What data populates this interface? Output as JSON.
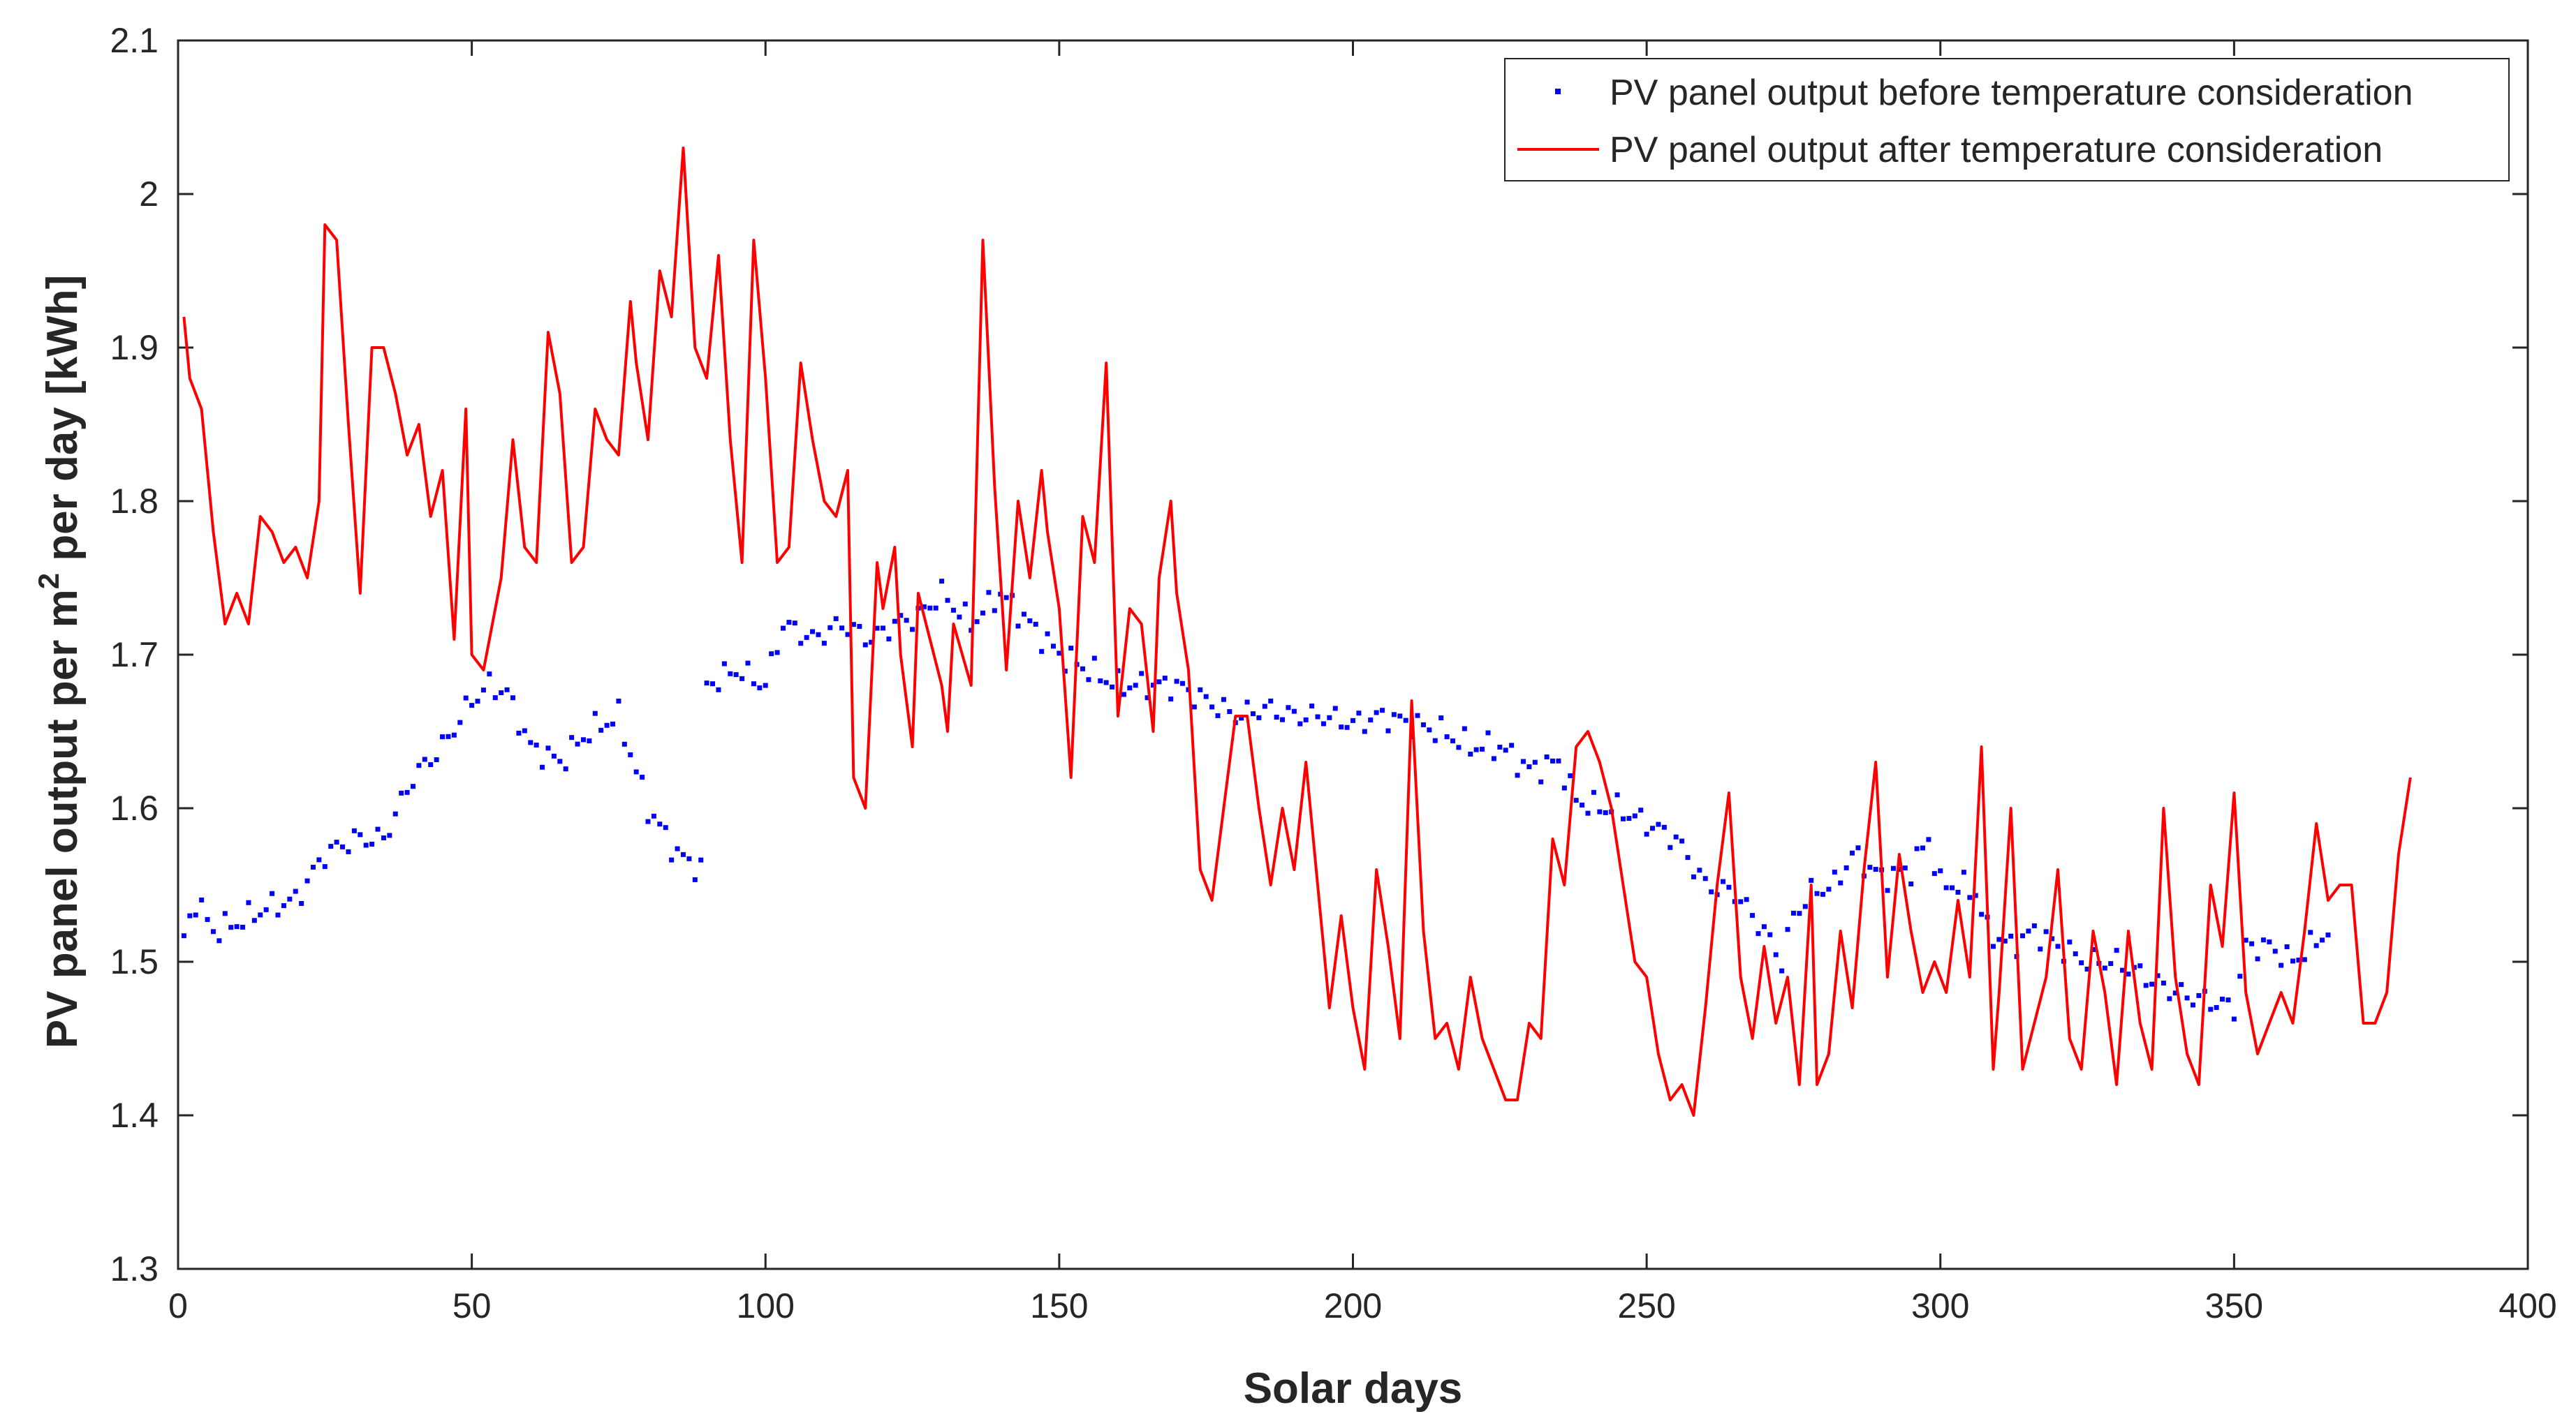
{
  "chart_data": {
    "type": "line",
    "title": "",
    "xlabel": "Solar days",
    "ylabel_parts": {
      "prefix": "PV panel output per m",
      "superscript": "2",
      "suffix": " per day [kWh]"
    },
    "xlim": [
      0,
      400
    ],
    "ylim": [
      1.3,
      2.1
    ],
    "xticks": [
      0,
      50,
      100,
      150,
      200,
      250,
      300,
      350,
      400
    ],
    "yticks": [
      1.3,
      1.4,
      1.5,
      1.6,
      1.7,
      1.8,
      1.9,
      2.0,
      2.1
    ],
    "xtick_labels": [
      "0",
      "50",
      "100",
      "150",
      "200",
      "250",
      "300",
      "350",
      "400"
    ],
    "ytick_labels": [
      "1.3",
      "1.4",
      "1.5",
      "1.6",
      "1.7",
      "1.8",
      "1.9",
      "2",
      "2.1"
    ],
    "grid": false,
    "legend_position": "top-right",
    "series": [
      {
        "name": "PV panel output before temperature consideration",
        "style": "dots",
        "color": "#0000ff",
        "x_start": 1,
        "x_step": 1,
        "anchors": [
          [
            1,
            1.515
          ],
          [
            3,
            1.54
          ],
          [
            6,
            1.52
          ],
          [
            10,
            1.525
          ],
          [
            15,
            1.535
          ],
          [
            20,
            1.54
          ],
          [
            25,
            1.57
          ],
          [
            30,
            1.58
          ],
          [
            35,
            1.58
          ],
          [
            40,
            1.62
          ],
          [
            45,
            1.64
          ],
          [
            50,
            1.67
          ],
          [
            53,
            1.68
          ],
          [
            56,
            1.675
          ],
          [
            60,
            1.64
          ],
          [
            65,
            1.63
          ],
          [
            70,
            1.65
          ],
          [
            75,
            1.66
          ],
          [
            80,
            1.6
          ],
          [
            85,
            1.57
          ],
          [
            89,
            1.56
          ],
          [
            90,
            1.68
          ],
          [
            95,
            1.69
          ],
          [
            100,
            1.68
          ],
          [
            103,
            1.72
          ],
          [
            108,
            1.71
          ],
          [
            113,
            1.72
          ],
          [
            118,
            1.71
          ],
          [
            122,
            1.72
          ],
          [
            126,
            1.725
          ],
          [
            130,
            1.74
          ],
          [
            135,
            1.72
          ],
          [
            140,
            1.74
          ],
          [
            145,
            1.72
          ],
          [
            150,
            1.7
          ],
          [
            155,
            1.69
          ],
          [
            160,
            1.68
          ],
          [
            165,
            1.68
          ],
          [
            170,
            1.68
          ],
          [
            175,
            1.67
          ],
          [
            180,
            1.66
          ],
          [
            185,
            1.665
          ],
          [
            190,
            1.66
          ],
          [
            195,
            1.66
          ],
          [
            200,
            1.655
          ],
          [
            205,
            1.66
          ],
          [
            210,
            1.655
          ],
          [
            215,
            1.65
          ],
          [
            220,
            1.64
          ],
          [
            225,
            1.64
          ],
          [
            230,
            1.625
          ],
          [
            235,
            1.63
          ],
          [
            238,
            1.605
          ],
          [
            242,
            1.6
          ],
          [
            245,
            1.6
          ],
          [
            250,
            1.59
          ],
          [
            255,
            1.58
          ],
          [
            260,
            1.55
          ],
          [
            265,
            1.545
          ],
          [
            270,
            1.52
          ],
          [
            273,
            1.5
          ],
          [
            275,
            1.53
          ],
          [
            278,
            1.545
          ],
          [
            282,
            1.55
          ],
          [
            285,
            1.57
          ],
          [
            290,
            1.555
          ],
          [
            295,
            1.56
          ],
          [
            298,
            1.58
          ],
          [
            300,
            1.55
          ],
          [
            303,
            1.55
          ],
          [
            306,
            1.545
          ],
          [
            308,
            1.52
          ],
          [
            312,
            1.51
          ],
          [
            316,
            1.52
          ],
          [
            320,
            1.51
          ],
          [
            325,
            1.5
          ],
          [
            330,
            1.5
          ],
          [
            335,
            1.49
          ],
          [
            340,
            1.48
          ],
          [
            345,
            1.475
          ],
          [
            350,
            1.47
          ],
          [
            352,
            1.51
          ],
          [
            356,
            1.51
          ],
          [
            360,
            1.5
          ],
          [
            363,
            1.51
          ],
          [
            366,
            1.52
          ]
        ]
      },
      {
        "name": "PV panel output after temperature consideration",
        "style": "line",
        "color": "#ff0000",
        "points": [
          [
            1,
            1.92
          ],
          [
            2,
            1.88
          ],
          [
            4,
            1.86
          ],
          [
            6,
            1.78
          ],
          [
            8,
            1.72
          ],
          [
            10,
            1.74
          ],
          [
            12,
            1.72
          ],
          [
            14,
            1.79
          ],
          [
            16,
            1.78
          ],
          [
            18,
            1.76
          ],
          [
            20,
            1.77
          ],
          [
            22,
            1.75
          ],
          [
            24,
            1.8
          ],
          [
            25,
            1.98
          ],
          [
            27,
            1.97
          ],
          [
            29,
            1.85
          ],
          [
            31,
            1.74
          ],
          [
            33,
            1.9
          ],
          [
            35,
            1.9
          ],
          [
            37,
            1.87
          ],
          [
            39,
            1.83
          ],
          [
            41,
            1.85
          ],
          [
            43,
            1.79
          ],
          [
            45,
            1.82
          ],
          [
            47,
            1.71
          ],
          [
            49,
            1.86
          ],
          [
            50,
            1.7
          ],
          [
            52,
            1.69
          ],
          [
            55,
            1.75
          ],
          [
            57,
            1.84
          ],
          [
            59,
            1.77
          ],
          [
            61,
            1.76
          ],
          [
            63,
            1.91
          ],
          [
            65,
            1.87
          ],
          [
            67,
            1.76
          ],
          [
            69,
            1.77
          ],
          [
            71,
            1.86
          ],
          [
            73,
            1.84
          ],
          [
            75,
            1.83
          ],
          [
            77,
            1.93
          ],
          [
            78,
            1.89
          ],
          [
            80,
            1.84
          ],
          [
            82,
            1.95
          ],
          [
            84,
            1.92
          ],
          [
            86,
            2.03
          ],
          [
            88,
            1.9
          ],
          [
            90,
            1.88
          ],
          [
            92,
            1.96
          ],
          [
            94,
            1.84
          ],
          [
            96,
            1.76
          ],
          [
            98,
            1.97
          ],
          [
            100,
            1.88
          ],
          [
            102,
            1.76
          ],
          [
            104,
            1.77
          ],
          [
            106,
            1.89
          ],
          [
            108,
            1.84
          ],
          [
            110,
            1.8
          ],
          [
            112,
            1.79
          ],
          [
            114,
            1.82
          ],
          [
            115,
            1.62
          ],
          [
            117,
            1.6
          ],
          [
            119,
            1.76
          ],
          [
            120,
            1.73
          ],
          [
            122,
            1.77
          ],
          [
            123,
            1.7
          ],
          [
            125,
            1.64
          ],
          [
            126,
            1.74
          ],
          [
            128,
            1.71
          ],
          [
            130,
            1.68
          ],
          [
            131,
            1.65
          ],
          [
            132,
            1.72
          ],
          [
            135,
            1.68
          ],
          [
            137,
            1.97
          ],
          [
            139,
            1.81
          ],
          [
            141,
            1.69
          ],
          [
            143,
            1.8
          ],
          [
            145,
            1.75
          ],
          [
            147,
            1.82
          ],
          [
            148,
            1.78
          ],
          [
            150,
            1.73
          ],
          [
            152,
            1.62
          ],
          [
            154,
            1.79
          ],
          [
            156,
            1.76
          ],
          [
            158,
            1.89
          ],
          [
            160,
            1.66
          ],
          [
            162,
            1.73
          ],
          [
            164,
            1.72
          ],
          [
            166,
            1.65
          ],
          [
            167,
            1.75
          ],
          [
            169,
            1.8
          ],
          [
            170,
            1.74
          ],
          [
            172,
            1.69
          ],
          [
            174,
            1.56
          ],
          [
            176,
            1.54
          ],
          [
            178,
            1.6
          ],
          [
            180,
            1.66
          ],
          [
            182,
            1.66
          ],
          [
            184,
            1.6
          ],
          [
            186,
            1.55
          ],
          [
            188,
            1.6
          ],
          [
            190,
            1.56
          ],
          [
            192,
            1.63
          ],
          [
            194,
            1.55
          ],
          [
            196,
            1.47
          ],
          [
            198,
            1.53
          ],
          [
            200,
            1.47
          ],
          [
            202,
            1.43
          ],
          [
            204,
            1.56
          ],
          [
            206,
            1.51
          ],
          [
            208,
            1.45
          ],
          [
            210,
            1.67
          ],
          [
            212,
            1.52
          ],
          [
            214,
            1.45
          ],
          [
            216,
            1.46
          ],
          [
            218,
            1.43
          ],
          [
            220,
            1.49
          ],
          [
            222,
            1.45
          ],
          [
            224,
            1.43
          ],
          [
            226,
            1.41
          ],
          [
            228,
            1.41
          ],
          [
            230,
            1.46
          ],
          [
            232,
            1.45
          ],
          [
            234,
            1.58
          ],
          [
            236,
            1.55
          ],
          [
            238,
            1.64
          ],
          [
            240,
            1.65
          ],
          [
            242,
            1.63
          ],
          [
            244,
            1.6
          ],
          [
            246,
            1.55
          ],
          [
            248,
            1.5
          ],
          [
            250,
            1.49
          ],
          [
            252,
            1.44
          ],
          [
            254,
            1.41
          ],
          [
            256,
            1.42
          ],
          [
            258,
            1.4
          ],
          [
            260,
            1.47
          ],
          [
            262,
            1.55
          ],
          [
            264,
            1.61
          ],
          [
            266,
            1.49
          ],
          [
            268,
            1.45
          ],
          [
            270,
            1.51
          ],
          [
            272,
            1.46
          ],
          [
            274,
            1.49
          ],
          [
            276,
            1.42
          ],
          [
            278,
            1.55
          ],
          [
            279,
            1.42
          ],
          [
            281,
            1.44
          ],
          [
            283,
            1.52
          ],
          [
            285,
            1.47
          ],
          [
            287,
            1.56
          ],
          [
            289,
            1.63
          ],
          [
            291,
            1.49
          ],
          [
            293,
            1.57
          ],
          [
            295,
            1.52
          ],
          [
            297,
            1.48
          ],
          [
            299,
            1.5
          ],
          [
            301,
            1.48
          ],
          [
            303,
            1.54
          ],
          [
            305,
            1.49
          ],
          [
            307,
            1.64
          ],
          [
            309,
            1.43
          ],
          [
            310,
            1.48
          ],
          [
            312,
            1.6
          ],
          [
            314,
            1.43
          ],
          [
            316,
            1.46
          ],
          [
            318,
            1.49
          ],
          [
            320,
            1.56
          ],
          [
            322,
            1.45
          ],
          [
            324,
            1.43
          ],
          [
            326,
            1.52
          ],
          [
            328,
            1.48
          ],
          [
            330,
            1.42
          ],
          [
            332,
            1.52
          ],
          [
            334,
            1.46
          ],
          [
            336,
            1.43
          ],
          [
            338,
            1.6
          ],
          [
            340,
            1.49
          ],
          [
            342,
            1.44
          ],
          [
            344,
            1.42
          ],
          [
            346,
            1.55
          ],
          [
            348,
            1.51
          ],
          [
            350,
            1.61
          ],
          [
            352,
            1.48
          ],
          [
            354,
            1.44
          ],
          [
            356,
            1.46
          ],
          [
            358,
            1.48
          ],
          [
            360,
            1.46
          ],
          [
            362,
            1.52
          ],
          [
            364,
            1.59
          ],
          [
            366,
            1.54
          ],
          [
            368,
            1.55
          ],
          [
            370,
            1.55
          ],
          [
            372,
            1.46
          ],
          [
            374,
            1.46
          ],
          [
            376,
            1.48
          ],
          [
            378,
            1.57
          ],
          [
            380,
            1.62
          ]
        ]
      }
    ]
  }
}
